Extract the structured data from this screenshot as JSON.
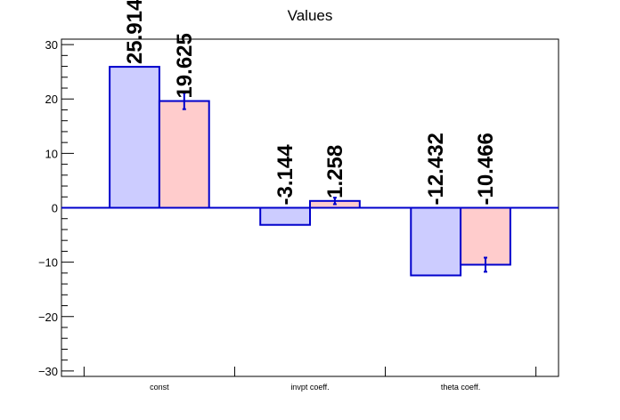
{
  "chart_data": {
    "type": "bar",
    "title": "Values",
    "categories": [
      "const",
      "invpt coeff.",
      "theta coeff."
    ],
    "series": [
      {
        "values": [
          25.914,
          -3.144,
          -12.432
        ],
        "labels": [
          "25.914",
          "-3.144",
          "-12.432"
        ],
        "errors": [
          0.0,
          0.0,
          0.0
        ],
        "fill": "#ccccff",
        "stroke": "#0000cc"
      },
      {
        "values": [
          19.625,
          1.258,
          -10.466
        ],
        "labels": [
          "19.625",
          "1.258",
          "-10.466"
        ],
        "errors": [
          1.5,
          0.6,
          1.3
        ],
        "fill": "#ffcccc",
        "stroke": "#0000cc"
      }
    ],
    "ylim": [
      -31,
      31
    ],
    "yticks": [
      -30,
      -20,
      -10,
      0,
      10,
      20,
      30
    ],
    "ytick_labels": [
      "−30",
      "−20",
      "−10",
      "0",
      "10",
      "20",
      "30"
    ],
    "grid": false,
    "xlabel": "",
    "ylabel": ""
  }
}
